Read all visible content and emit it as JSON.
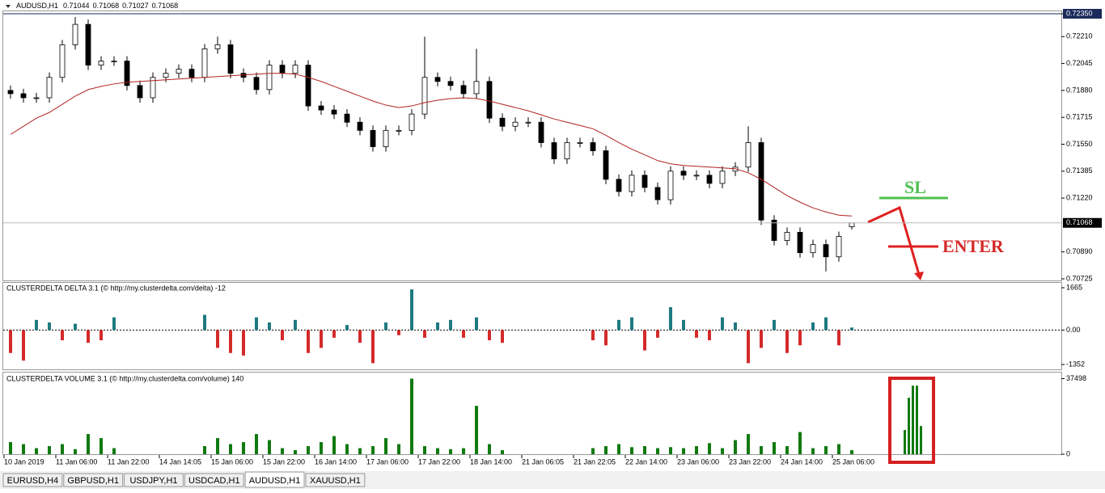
{
  "chart_data": [
    {
      "type": "candlestick",
      "title": "AUDUSD,H1",
      "ylim": [
        0.70715,
        0.72365
      ],
      "yticks": [
        {
          "value": 0.7235,
          "label": "0.72350"
        },
        {
          "value": 0.7221,
          "label": "0.72210"
        },
        {
          "value": 0.72045,
          "label": "0.72045"
        },
        {
          "value": 0.7188,
          "label": "0.71880"
        },
        {
          "value": 0.71715,
          "label": "0.71715"
        },
        {
          "value": 0.7155,
          "label": "0.71550"
        },
        {
          "value": 0.71385,
          "label": "0.71385"
        },
        {
          "value": 0.7122,
          "label": "0.71220"
        },
        {
          "value": 0.7089,
          "label": "0.70890"
        },
        {
          "value": 0.70725,
          "label": "0.70725"
        }
      ],
      "up_color": "#ffffff",
      "down_color": "#000000",
      "categories": [
        "10 Jan 2019",
        null,
        null,
        null,
        "11 Jan 06:00",
        null,
        null,
        null,
        "11 Jan 22:00",
        null,
        null,
        null,
        "14 Jan 14:05",
        null,
        null,
        null,
        "15 Jan 06:00",
        null,
        null,
        null,
        "15 Jan 22:00",
        null,
        null,
        null,
        "16 Jan 14:00",
        null,
        null,
        null,
        "17 Jan 06:00",
        null,
        null,
        null,
        "17 Jan 22:00",
        null,
        null,
        null,
        "18 Jan 14:00",
        null,
        null,
        null,
        "21 Jan 06:05",
        null,
        null,
        null,
        "21 Jan 22:05",
        null,
        null,
        null,
        "22 Jan 14:00",
        null,
        null,
        null,
        "23 Jan 06:00",
        null,
        null,
        null,
        "23 Jan 22:00",
        null,
        null,
        null,
        "24 Jan 14:00",
        null,
        null,
        null,
        "25 Jan 06:00",
        null
      ],
      "open": [
        0.7188,
        0.7186,
        0.71835,
        0.71835,
        0.7196,
        0.7216,
        0.72285,
        0.72035,
        0.7206,
        0.7206,
        0.7191,
        0.71835,
        0.7196,
        0.71985,
        0.7201,
        0.7196,
        0.72135,
        0.7216,
        0.71985,
        0.7196,
        0.71885,
        0.72035,
        0.71985,
        0.72035,
        0.71785,
        0.7176,
        0.71735,
        0.71685,
        0.71635,
        0.71535,
        0.71635,
        0.71635,
        0.71735,
        0.7196,
        0.71935,
        0.7191,
        0.7186,
        0.71935,
        0.7171,
        0.7166,
        0.71685,
        0.71685,
        0.7156,
        0.7146,
        0.7156,
        0.7156,
        0.7151,
        0.71335,
        0.7126,
        0.7136,
        0.71285,
        0.7121,
        0.71385,
        0.7136,
        0.7136,
        0.7131,
        0.71385,
        0.7141,
        0.7156,
        0.71085,
        0.7096,
        0.7101,
        0.70885,
        0.70935,
        0.7086,
        0.71044
      ],
      "high": [
        0.7191,
        0.7189,
        0.71865,
        0.7199,
        0.7219,
        0.7233,
        0.72315,
        0.7209,
        0.7209,
        0.7209,
        0.7194,
        0.7199,
        0.72015,
        0.7204,
        0.7204,
        0.72165,
        0.7221,
        0.7219,
        0.72015,
        0.7199,
        0.72065,
        0.72065,
        0.72065,
        0.72065,
        0.71815,
        0.7179,
        0.71765,
        0.71715,
        0.71665,
        0.71665,
        0.71665,
        0.71765,
        0.7221,
        0.7199,
        0.71965,
        0.7194,
        0.72135,
        0.71965,
        0.7174,
        0.71715,
        0.71715,
        0.71715,
        0.7159,
        0.7159,
        0.7159,
        0.7159,
        0.7154,
        0.71365,
        0.7139,
        0.7139,
        0.71315,
        0.71415,
        0.71415,
        0.7139,
        0.7139,
        0.71415,
        0.7144,
        0.7166,
        0.7159,
        0.71115,
        0.7104,
        0.7104,
        0.70965,
        0.70965,
        0.71015,
        0.71068
      ],
      "low": [
        0.7183,
        0.71805,
        0.71805,
        0.71805,
        0.7193,
        0.7213,
        0.72005,
        0.72005,
        0.7203,
        0.7188,
        0.71805,
        0.71805,
        0.7193,
        0.71955,
        0.7193,
        0.7193,
        0.72105,
        0.71955,
        0.7193,
        0.71855,
        0.71855,
        0.71955,
        0.71955,
        0.71755,
        0.7173,
        0.71705,
        0.71655,
        0.71605,
        0.71505,
        0.71505,
        0.71605,
        0.71605,
        0.71705,
        0.71905,
        0.7188,
        0.7183,
        0.7183,
        0.7168,
        0.7163,
        0.7163,
        0.71655,
        0.7153,
        0.7143,
        0.7143,
        0.7153,
        0.7148,
        0.71305,
        0.7123,
        0.7123,
        0.71255,
        0.7118,
        0.7118,
        0.7133,
        0.7133,
        0.7128,
        0.7128,
        0.71355,
        0.7138,
        0.71055,
        0.7093,
        0.7093,
        0.70855,
        0.70855,
        0.7077,
        0.7083,
        0.71027
      ],
      "close": [
        0.7186,
        0.71835,
        0.71835,
        0.7196,
        0.7216,
        0.72285,
        0.72035,
        0.7206,
        0.7206,
        0.7191,
        0.71835,
        0.7196,
        0.71985,
        0.7201,
        0.7196,
        0.72135,
        0.7216,
        0.71985,
        0.7196,
        0.71885,
        0.72035,
        0.71985,
        0.72035,
        0.71785,
        0.7176,
        0.71735,
        0.71685,
        0.71635,
        0.71535,
        0.71635,
        0.71635,
        0.71735,
        0.7196,
        0.71935,
        0.7191,
        0.7186,
        0.71935,
        0.7171,
        0.7166,
        0.71685,
        0.71685,
        0.7156,
        0.7146,
        0.7156,
        0.7156,
        0.7151,
        0.71335,
        0.7126,
        0.7136,
        0.71285,
        0.7121,
        0.71385,
        0.7136,
        0.7136,
        0.7131,
        0.71385,
        0.7141,
        0.7156,
        0.71085,
        0.7096,
        0.7101,
        0.70885,
        0.70935,
        0.7086,
        0.70985,
        0.71068
      ],
      "ma": {
        "color": "#b22222",
        "values": [
          0.7161,
          0.7166,
          0.7171,
          0.71745,
          0.71795,
          0.71845,
          0.71885,
          0.71905,
          0.7192,
          0.7193,
          0.71935,
          0.7194,
          0.71945,
          0.7195,
          0.71955,
          0.7196,
          0.71965,
          0.7197,
          0.71975,
          0.7198,
          0.71985,
          0.71985,
          0.7198,
          0.7196,
          0.71935,
          0.71905,
          0.71875,
          0.71845,
          0.71815,
          0.7179,
          0.71775,
          0.71785,
          0.71805,
          0.7182,
          0.7183,
          0.71835,
          0.7183,
          0.71815,
          0.71795,
          0.71775,
          0.71755,
          0.7173,
          0.71705,
          0.71685,
          0.71665,
          0.71645,
          0.71605,
          0.7156,
          0.7152,
          0.71485,
          0.7145,
          0.7143,
          0.7142,
          0.71415,
          0.7141,
          0.71405,
          0.714,
          0.71375,
          0.71335,
          0.71285,
          0.71235,
          0.71195,
          0.7116,
          0.71135,
          0.71115,
          0.7111
        ]
      },
      "annotations": [
        "SL",
        "ENTER"
      ]
    },
    {
      "type": "bar",
      "title": "CLUSTERDELTA DELTA 3.1 (© http://my.clusterdelta.com/delta) -12",
      "ylim": [
        -1543,
        1856
      ],
      "yticks": [
        1665,
        {
          "value": 0,
          "label": "0.00"
        },
        -1352
      ],
      "zero_line": true,
      "positive_color": "#1f7a80",
      "negative_color": "#d42a2a",
      "values": [
        -900,
        -1200,
        400,
        300,
        -400,
        250,
        -500,
        -400,
        500,
        null,
        null,
        null,
        null,
        null,
        null,
        600,
        -700,
        -900,
        -1000,
        500,
        300,
        -400,
        400,
        -900,
        -700,
        -300,
        200,
        -500,
        -1300,
        300,
        -200,
        1600,
        -300,
        300,
        400,
        -300,
        500,
        -400,
        -500,
        null,
        null,
        null,
        null,
        null,
        null,
        -400,
        -600,
        400,
        500,
        -800,
        -300,
        900,
        400,
        -300,
        -400,
        500,
        300,
        -1300,
        -700,
        400,
        -900,
        -600,
        300,
        500,
        -600,
        100
      ]
    },
    {
      "type": "bar",
      "title": "CLUSTERDELTA VOLUME 3.1 (© http://my.clusterdelta.com/volume) 140",
      "ylim": [
        0,
        40500
      ],
      "yticks": [
        37498,
        0
      ],
      "color": "#107a10",
      "values": [
        6000,
        5000,
        3000,
        4000,
        5000,
        2500,
        10000,
        8000,
        3000,
        null,
        null,
        null,
        null,
        null,
        null,
        4000,
        8000,
        5000,
        6000,
        10000,
        7000,
        3000,
        2000,
        4000,
        6000,
        9000,
        5000,
        3000,
        4000,
        8000,
        5000,
        37498,
        4000,
        3000,
        2500,
        3000,
        24000,
        5000,
        2000,
        null,
        null,
        null,
        null,
        null,
        null,
        3000,
        4000,
        5000,
        3500,
        4000,
        3000,
        3500,
        3000,
        4000,
        5500,
        3000,
        7000,
        10000,
        4000,
        6000,
        4000,
        11000,
        3000,
        4000,
        5000,
        2000
      ],
      "highlight_values": [
        12000,
        28000,
        34000,
        34000,
        14000
      ]
    }
  ],
  "tabs": [
    "EURUSD,H4",
    "GBPUSD,H1",
    "USDJPY,H1",
    "USDCAD,H1",
    "AUDUSD,H1",
    "XAUUSD,H1"
  ],
  "active_tab": 4
}
